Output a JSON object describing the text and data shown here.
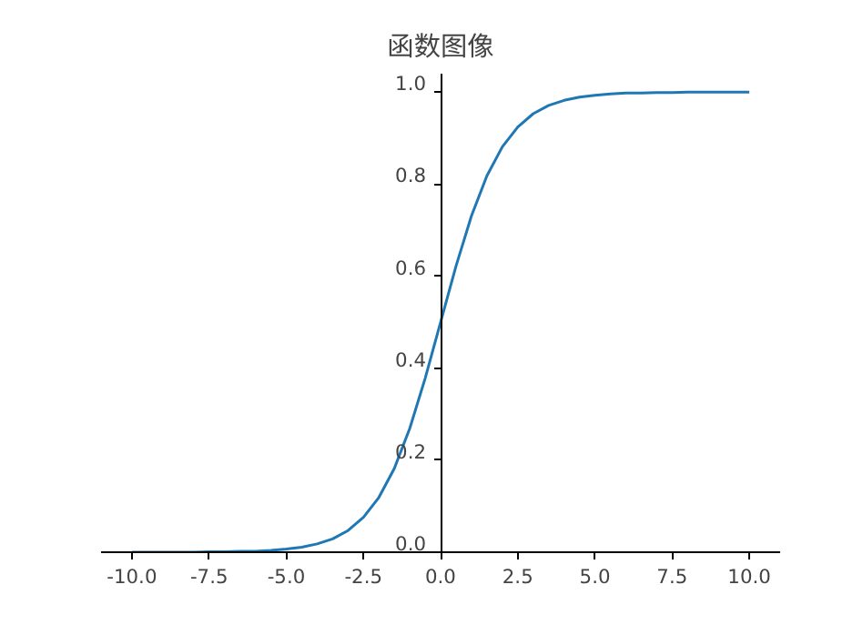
{
  "chart_data": {
    "type": "line",
    "title": "函数图像",
    "x": [
      -10,
      -9.5,
      -9,
      -8.5,
      -8,
      -7.5,
      -7,
      -6.5,
      -6,
      -5.5,
      -5,
      -4.5,
      -4,
      -3.5,
      -3,
      -2.5,
      -2,
      -1.5,
      -1,
      -0.5,
      0,
      0.5,
      1,
      1.5,
      2,
      2.5,
      3,
      3.5,
      4,
      4.5,
      5,
      5.5,
      6,
      6.5,
      7,
      7.5,
      8,
      8.5,
      9,
      9.5,
      10
    ],
    "series": [
      {
        "color": "#1f77b4",
        "values": [
          0.0,
          0.0,
          0.0,
          0.0,
          0.0,
          0.001,
          0.001,
          0.002,
          0.002,
          0.004,
          0.007,
          0.011,
          0.018,
          0.029,
          0.047,
          0.076,
          0.119,
          0.182,
          0.269,
          0.378,
          0.5,
          0.622,
          0.731,
          0.818,
          0.881,
          0.924,
          0.953,
          0.971,
          0.982,
          0.989,
          0.993,
          0.996,
          0.998,
          0.998,
          0.999,
          0.999,
          1.0,
          1.0,
          1.0,
          1.0,
          1.0
        ]
      }
    ],
    "xlim": [
      -11,
      11
    ],
    "ylim": [
      0,
      1.04
    ],
    "xticks": [
      {
        "value": -10,
        "label": "-10.0"
      },
      {
        "value": -7.5,
        "label": "-7.5"
      },
      {
        "value": -5,
        "label": "-5.0"
      },
      {
        "value": -2.5,
        "label": "-2.5"
      },
      {
        "value": 0,
        "label": "0.0"
      },
      {
        "value": 2.5,
        "label": "2.5"
      },
      {
        "value": 5,
        "label": "5.0"
      },
      {
        "value": 7.5,
        "label": "7.5"
      },
      {
        "value": 10,
        "label": "10.0"
      }
    ],
    "yticks": [
      {
        "value": 0,
        "label": "0.0"
      },
      {
        "value": 0.2,
        "label": "0.2"
      },
      {
        "value": 0.4,
        "label": "0.4"
      },
      {
        "value": 0.6,
        "label": "0.6"
      },
      {
        "value": 0.8,
        "label": "0.8"
      },
      {
        "value": 1,
        "label": "1.0"
      }
    ]
  }
}
